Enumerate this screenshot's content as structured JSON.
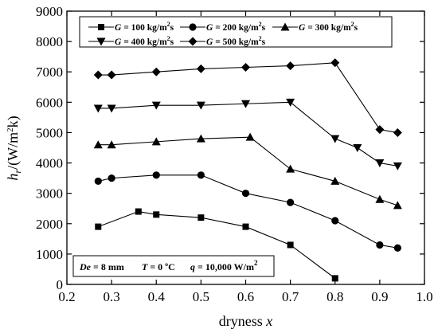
{
  "chart_data": {
    "type": "line",
    "xlabel": "dryness x",
    "ylabel": "h_r/(W/m^2k)",
    "xlim": [
      0.2,
      1.0
    ],
    "ylim": [
      0,
      9000
    ],
    "xticks": [
      0.2,
      0.3,
      0.4,
      0.5,
      0.6,
      0.7,
      0.8,
      0.9,
      1.0
    ],
    "yticks": [
      0,
      1000,
      2000,
      3000,
      4000,
      5000,
      6000,
      7000,
      8000,
      9000
    ],
    "xtick_labels": [
      "0.2",
      "0.3",
      "0.4",
      "0.5",
      "0.6",
      "0.7",
      "0.8",
      "0.9",
      "1.0"
    ],
    "ytick_labels": [
      "0",
      "1000",
      "2000",
      "3000",
      "4000",
      "5000",
      "6000",
      "7000",
      "8000",
      "9000"
    ],
    "grid": false,
    "legend_position": "top-center",
    "series": [
      {
        "name": "G = 100 kg/m²s",
        "label": {
          "var": "G",
          "rest": " = 100 kg/m",
          "sup": "2",
          "tail": "s"
        },
        "marker": "square",
        "x": [
          0.27,
          0.36,
          0.4,
          0.5,
          0.6,
          0.7,
          0.8
        ],
        "y": [
          1900,
          2400,
          2300,
          2200,
          1900,
          1300,
          200
        ]
      },
      {
        "name": "G = 200 kg/m²s",
        "label": {
          "var": "G",
          "rest": " = 200 kg/m",
          "sup": "2",
          "tail": "s"
        },
        "marker": "circle",
        "x": [
          0.27,
          0.3,
          0.4,
          0.5,
          0.6,
          0.7,
          0.8,
          0.9,
          0.94
        ],
        "y": [
          3400,
          3500,
          3600,
          3600,
          3000,
          2700,
          2100,
          1300,
          1200
        ]
      },
      {
        "name": "G = 300 kg/m²s",
        "label": {
          "var": "G",
          "rest": " = 300 kg/m",
          "sup": "2",
          "tail": "s"
        },
        "marker": "triangle-up",
        "x": [
          0.27,
          0.3,
          0.4,
          0.5,
          0.61,
          0.7,
          0.8,
          0.9,
          0.94
        ],
        "y": [
          4600,
          4600,
          4700,
          4800,
          4850,
          3800,
          3400,
          2800,
          2600
        ]
      },
      {
        "name": "G = 400 kg/m²s",
        "label": {
          "var": "G",
          "rest": " = 400 kg/m",
          "sup": "2",
          "tail": "s"
        },
        "marker": "triangle-down",
        "x": [
          0.27,
          0.3,
          0.4,
          0.5,
          0.6,
          0.7,
          0.8,
          0.85,
          0.9,
          0.94
        ],
        "y": [
          5800,
          5800,
          5900,
          5900,
          5950,
          6000,
          4800,
          4500,
          4000,
          3900
        ]
      },
      {
        "name": "G = 500 kg/m²s",
        "label": {
          "var": "G",
          "rest": " = 500 kg/m",
          "sup": "2",
          "tail": "s"
        },
        "marker": "diamond",
        "x": [
          0.27,
          0.3,
          0.4,
          0.5,
          0.6,
          0.7,
          0.8,
          0.9,
          0.94
        ],
        "y": [
          6900,
          6900,
          7000,
          7100,
          7150,
          7200,
          7300,
          5100,
          5000
        ]
      }
    ],
    "annotation": {
      "text": "De = 8 mm     T = 0 ºC     q = 10,000 W/m²",
      "de_var": "De",
      "de_rest": " = 8 mm",
      "t_var": "T",
      "t_rest": " = 0 ºC",
      "q_var": "q",
      "q_rest": " = 10,000 W/m",
      "q_sup": "2"
    },
    "ylabel_parts": {
      "h": "h",
      "sub": "r",
      "rest1": "/(W/m",
      "sup": "2",
      "rest2": "k)"
    },
    "xlabel_parts": {
      "text": "dryness ",
      "var": "x"
    }
  }
}
